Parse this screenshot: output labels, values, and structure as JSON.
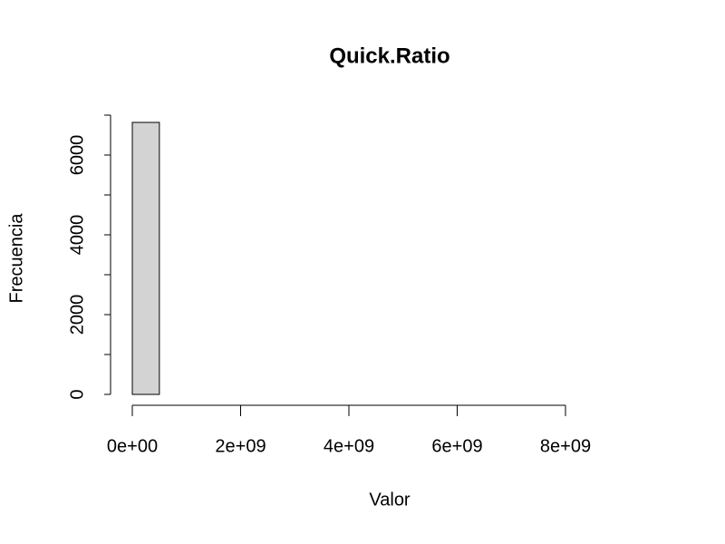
{
  "chart_data": {
    "type": "histogram",
    "title": "Quick.Ratio",
    "x_label": "Valor",
    "y_label": "Frecuencia",
    "bins": [
      0,
      500000000,
      1000000000,
      1500000000,
      2000000000,
      2500000000,
      3000000000,
      3500000000,
      4000000000,
      4500000000,
      5000000000,
      5500000000,
      6000000000,
      6500000000,
      7000000000,
      7500000000,
      8000000000,
      8500000000,
      9000000000,
      9500000000
    ],
    "values": [
      6818,
      0,
      0,
      0,
      0,
      0,
      0,
      0,
      0,
      0,
      0,
      0,
      0,
      0,
      0,
      0,
      0,
      0,
      0
    ],
    "color": "#d3d3d3",
    "xlim": [
      0,
      9500000000
    ],
    "xticks": [
      {
        "value": 0,
        "label": "0e+00"
      },
      {
        "value": 2000000000,
        "label": "2e+09"
      },
      {
        "value": 4000000000,
        "label": "4e+09"
      },
      {
        "value": 6000000000,
        "label": "6e+09"
      },
      {
        "value": 8000000000,
        "label": "8e+09"
      }
    ],
    "ylim": [
      0,
      7000
    ],
    "yticks": [
      0,
      2000,
      4000,
      6000
    ],
    "yminor_ticks": [
      1000,
      3000,
      5000,
      7000
    ]
  }
}
